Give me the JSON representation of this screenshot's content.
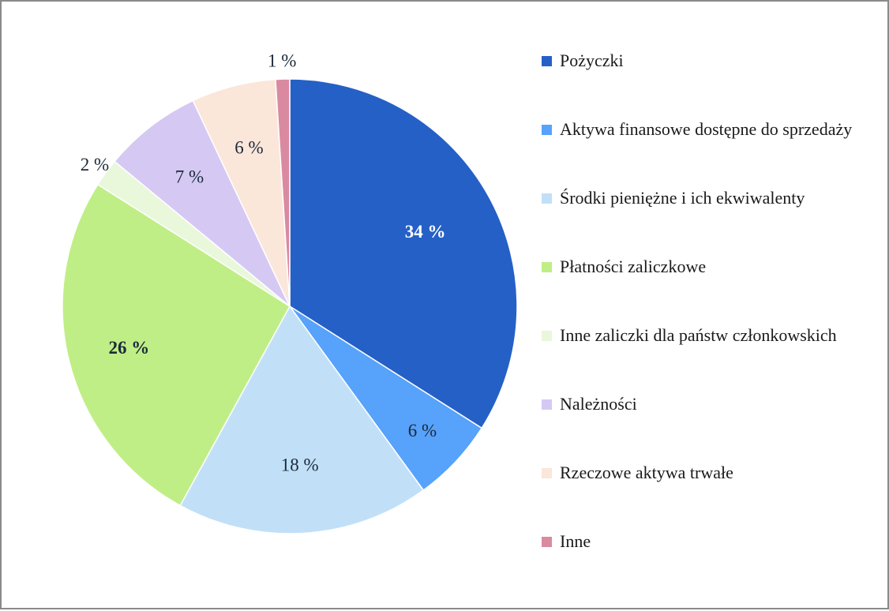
{
  "chart_data": {
    "type": "pie",
    "start_angle": "12 o'clock",
    "direction": "clockwise",
    "legend_position": "right",
    "slices": [
      {
        "name": "Pożyczki",
        "value": 34,
        "label": "34 %",
        "color": "#2560c6",
        "label_color": "#ffffff",
        "label_bold": true
      },
      {
        "name": "Aktywa finansowe dostępne do sprzedaży",
        "value": 6,
        "label": "6 %",
        "color": "#57a2fa",
        "label_color": "#1b2a3a",
        "label_bold": false
      },
      {
        "name": "Środki pieniężne i ich ekwiwalenty",
        "value": 18,
        "label": "18 %",
        "color": "#c1e0f8",
        "label_color": "#1b2a3a",
        "label_bold": false
      },
      {
        "name": "Płatności zaliczkowe",
        "value": 26,
        "label": "26 %",
        "color": "#c0ee86",
        "label_color": "#1b2a3a",
        "label_bold": true
      },
      {
        "name": "Inne zaliczki dla państw członkowskich",
        "value": 2,
        "label": "2 %",
        "color": "#e9f7db",
        "label_color": "#1b2a3a",
        "label_bold": false
      },
      {
        "name": "Należności",
        "value": 7,
        "label": "7 %",
        "color": "#d5c9f4",
        "label_color": "#1b2a3a",
        "label_bold": false
      },
      {
        "name": "Rzeczowe aktywa trwałe",
        "value": 6,
        "label": "6 %",
        "color": "#fbe6da",
        "label_color": "#1b2a3a",
        "label_bold": false
      },
      {
        "name": "Inne",
        "value": 1,
        "label": "1 %",
        "color": "#d98aa1",
        "label_color": "#1b2a3a",
        "label_bold": false
      }
    ]
  }
}
